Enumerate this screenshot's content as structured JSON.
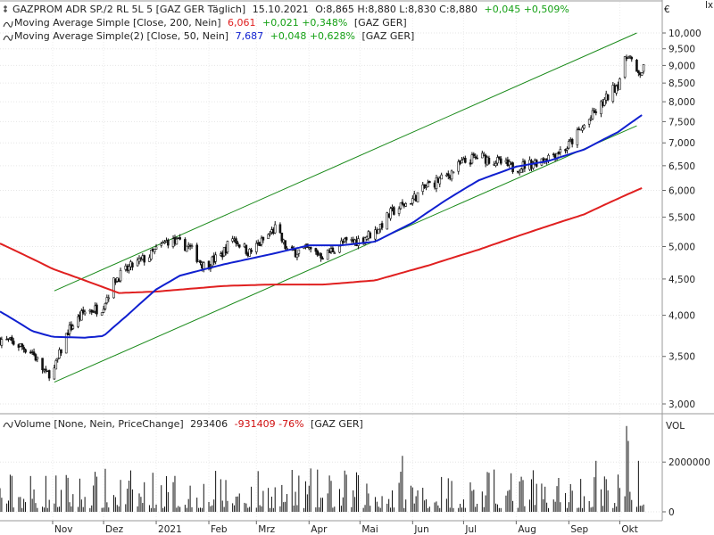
{
  "chart_data": [
    {
      "type": "candlestick",
      "legend": {
        "main_title": "GAZPROM ADR SP./2 RL 5L 5 [GAZ GER  Täglich]",
        "main_date": "15.10.2021",
        "main_values": "O:8,865 H:8,880 L:8,830 C:8,880",
        "main_change": "+0,045 +0,509%",
        "ma200_label": "Moving Average Simple [Close, 200, Nein]",
        "ma200_value": "6,061",
        "ma200_change": "+0,021 +0,348%",
        "ma200_tag": "[GAZ GER]",
        "ma50_label": "Moving Average Simple(2) [Close, 50, Nein]",
        "ma50_value": "7,687",
        "ma50_change": "+0,048 +0,628%",
        "ma50_tag": "[GAZ GER]"
      },
      "currency_label": "€",
      "y_ticks": [
        "10,000",
        "9,500",
        "9,000",
        "8,500",
        "8,000",
        "7,500",
        "7,000",
        "6,500",
        "6,000",
        "5,500",
        "5,000",
        "4,500",
        "4,000",
        "3,500",
        "3,000"
      ],
      "y_tick_values": [
        10.0,
        9.5,
        9.0,
        8.5,
        8.0,
        7.5,
        7.0,
        6.5,
        6.0,
        5.5,
        5.0,
        4.5,
        4.0,
        3.5,
        3.0
      ],
      "y_scale": "log",
      "ylim": [
        2.95,
        10.8
      ],
      "x_ticks": [
        "Nov",
        "Dez",
        "2021",
        "Feb",
        "Mrz",
        "Apr",
        "Mai",
        "Jun",
        "Jul",
        "Aug",
        "Sep",
        "Okt"
      ],
      "price_keypoints": [
        [
          "2020-10-01",
          3.7
        ],
        [
          "2020-10-10",
          3.65
        ],
        [
          "2020-10-20",
          3.55
        ],
        [
          "2020-10-28",
          3.3
        ],
        [
          "2020-11-02",
          3.35
        ],
        [
          "2020-11-10",
          3.8
        ],
        [
          "2020-11-20",
          4.05
        ],
        [
          "2020-11-30",
          4.1
        ],
        [
          "2020-12-08",
          4.5
        ],
        [
          "2020-12-18",
          4.7
        ],
        [
          "2020-12-28",
          4.85
        ],
        [
          "2021-01-08",
          5.1
        ],
        [
          "2021-01-20",
          5.0
        ],
        [
          "2021-01-29",
          4.7
        ],
        [
          "2021-02-08",
          4.85
        ],
        [
          "2021-02-15",
          5.15
        ],
        [
          "2021-02-25",
          4.9
        ],
        [
          "2021-03-05",
          5.1
        ],
        [
          "2021-03-12",
          5.3
        ],
        [
          "2021-03-20",
          4.9
        ],
        [
          "2021-03-31",
          4.95
        ],
        [
          "2021-04-10",
          4.85
        ],
        [
          "2021-04-20",
          5.05
        ],
        [
          "2021-04-30",
          5.1
        ],
        [
          "2021-05-10",
          5.25
        ],
        [
          "2021-05-20",
          5.6
        ],
        [
          "2021-05-31",
          5.8
        ],
        [
          "2021-06-10",
          6.1
        ],
        [
          "2021-06-20",
          6.25
        ],
        [
          "2021-06-30",
          6.55
        ],
        [
          "2021-07-10",
          6.7
        ],
        [
          "2021-07-20",
          6.6
        ],
        [
          "2021-07-30",
          6.45
        ],
        [
          "2021-08-10",
          6.55
        ],
        [
          "2021-08-20",
          6.7
        ],
        [
          "2021-08-31",
          6.9
        ],
        [
          "2021-09-10",
          7.4
        ],
        [
          "2021-09-20",
          7.9
        ],
        [
          "2021-09-30",
          8.5
        ],
        [
          "2021-10-06",
          9.4
        ],
        [
          "2021-10-11",
          8.7
        ],
        [
          "2021-10-15",
          8.88
        ]
      ],
      "ma200_keypoints": [
        [
          "2020-10-01",
          5.05
        ],
        [
          "2020-11-01",
          4.65
        ],
        [
          "2020-12-10",
          4.3
        ],
        [
          "2021-01-01",
          4.32
        ],
        [
          "2021-02-10",
          4.4
        ],
        [
          "2021-03-10",
          4.42
        ],
        [
          "2021-04-10",
          4.42
        ],
        [
          "2021-05-10",
          4.48
        ],
        [
          "2021-06-10",
          4.7
        ],
        [
          "2021-07-10",
          4.95
        ],
        [
          "2021-08-10",
          5.25
        ],
        [
          "2021-09-10",
          5.55
        ],
        [
          "2021-10-15",
          6.06
        ]
      ],
      "ma50_keypoints": [
        [
          "2020-10-01",
          4.05
        ],
        [
          "2020-10-20",
          3.8
        ],
        [
          "2020-11-01",
          3.73
        ],
        [
          "2020-11-20",
          3.72
        ],
        [
          "2020-12-01",
          3.74
        ],
        [
          "2020-12-15",
          4.0
        ],
        [
          "2021-01-01",
          4.35
        ],
        [
          "2021-01-15",
          4.55
        ],
        [
          "2021-02-10",
          4.72
        ],
        [
          "2021-03-10",
          4.88
        ],
        [
          "2021-04-01",
          5.02
        ],
        [
          "2021-04-20",
          5.02
        ],
        [
          "2021-05-10",
          5.08
        ],
        [
          "2021-06-01",
          5.4
        ],
        [
          "2021-06-20",
          5.8
        ],
        [
          "2021-07-10",
          6.2
        ],
        [
          "2021-08-01",
          6.48
        ],
        [
          "2021-08-20",
          6.6
        ],
        [
          "2021-09-10",
          6.85
        ],
        [
          "2021-09-30",
          7.25
        ],
        [
          "2021-10-15",
          7.69
        ]
      ],
      "channel_upper": [
        [
          "2020-11-02",
          4.33
        ],
        [
          "2021-10-11",
          10.0
        ]
      ],
      "channel_lower": [
        [
          "2020-11-02",
          3.22
        ],
        [
          "2021-10-11",
          7.4
        ]
      ],
      "colors": {
        "ma200": "#e02020",
        "ma50": "#1020d0",
        "channel": "#1a8a1a",
        "candle": "#111111",
        "positive": "#14a014",
        "negative": "#d01010"
      }
    },
    {
      "type": "bar",
      "legend": {
        "label": "Volume [None, Nein, PriceChange]",
        "value": "293406",
        "change": "-931409 -76%",
        "tag": "[GAZ GER]"
      },
      "y_label": "VOL",
      "y_ticks": [
        "2000000",
        "0"
      ],
      "y_tick_values": [
        2000000,
        0
      ],
      "ylim": [
        0,
        3800000
      ]
    }
  ]
}
